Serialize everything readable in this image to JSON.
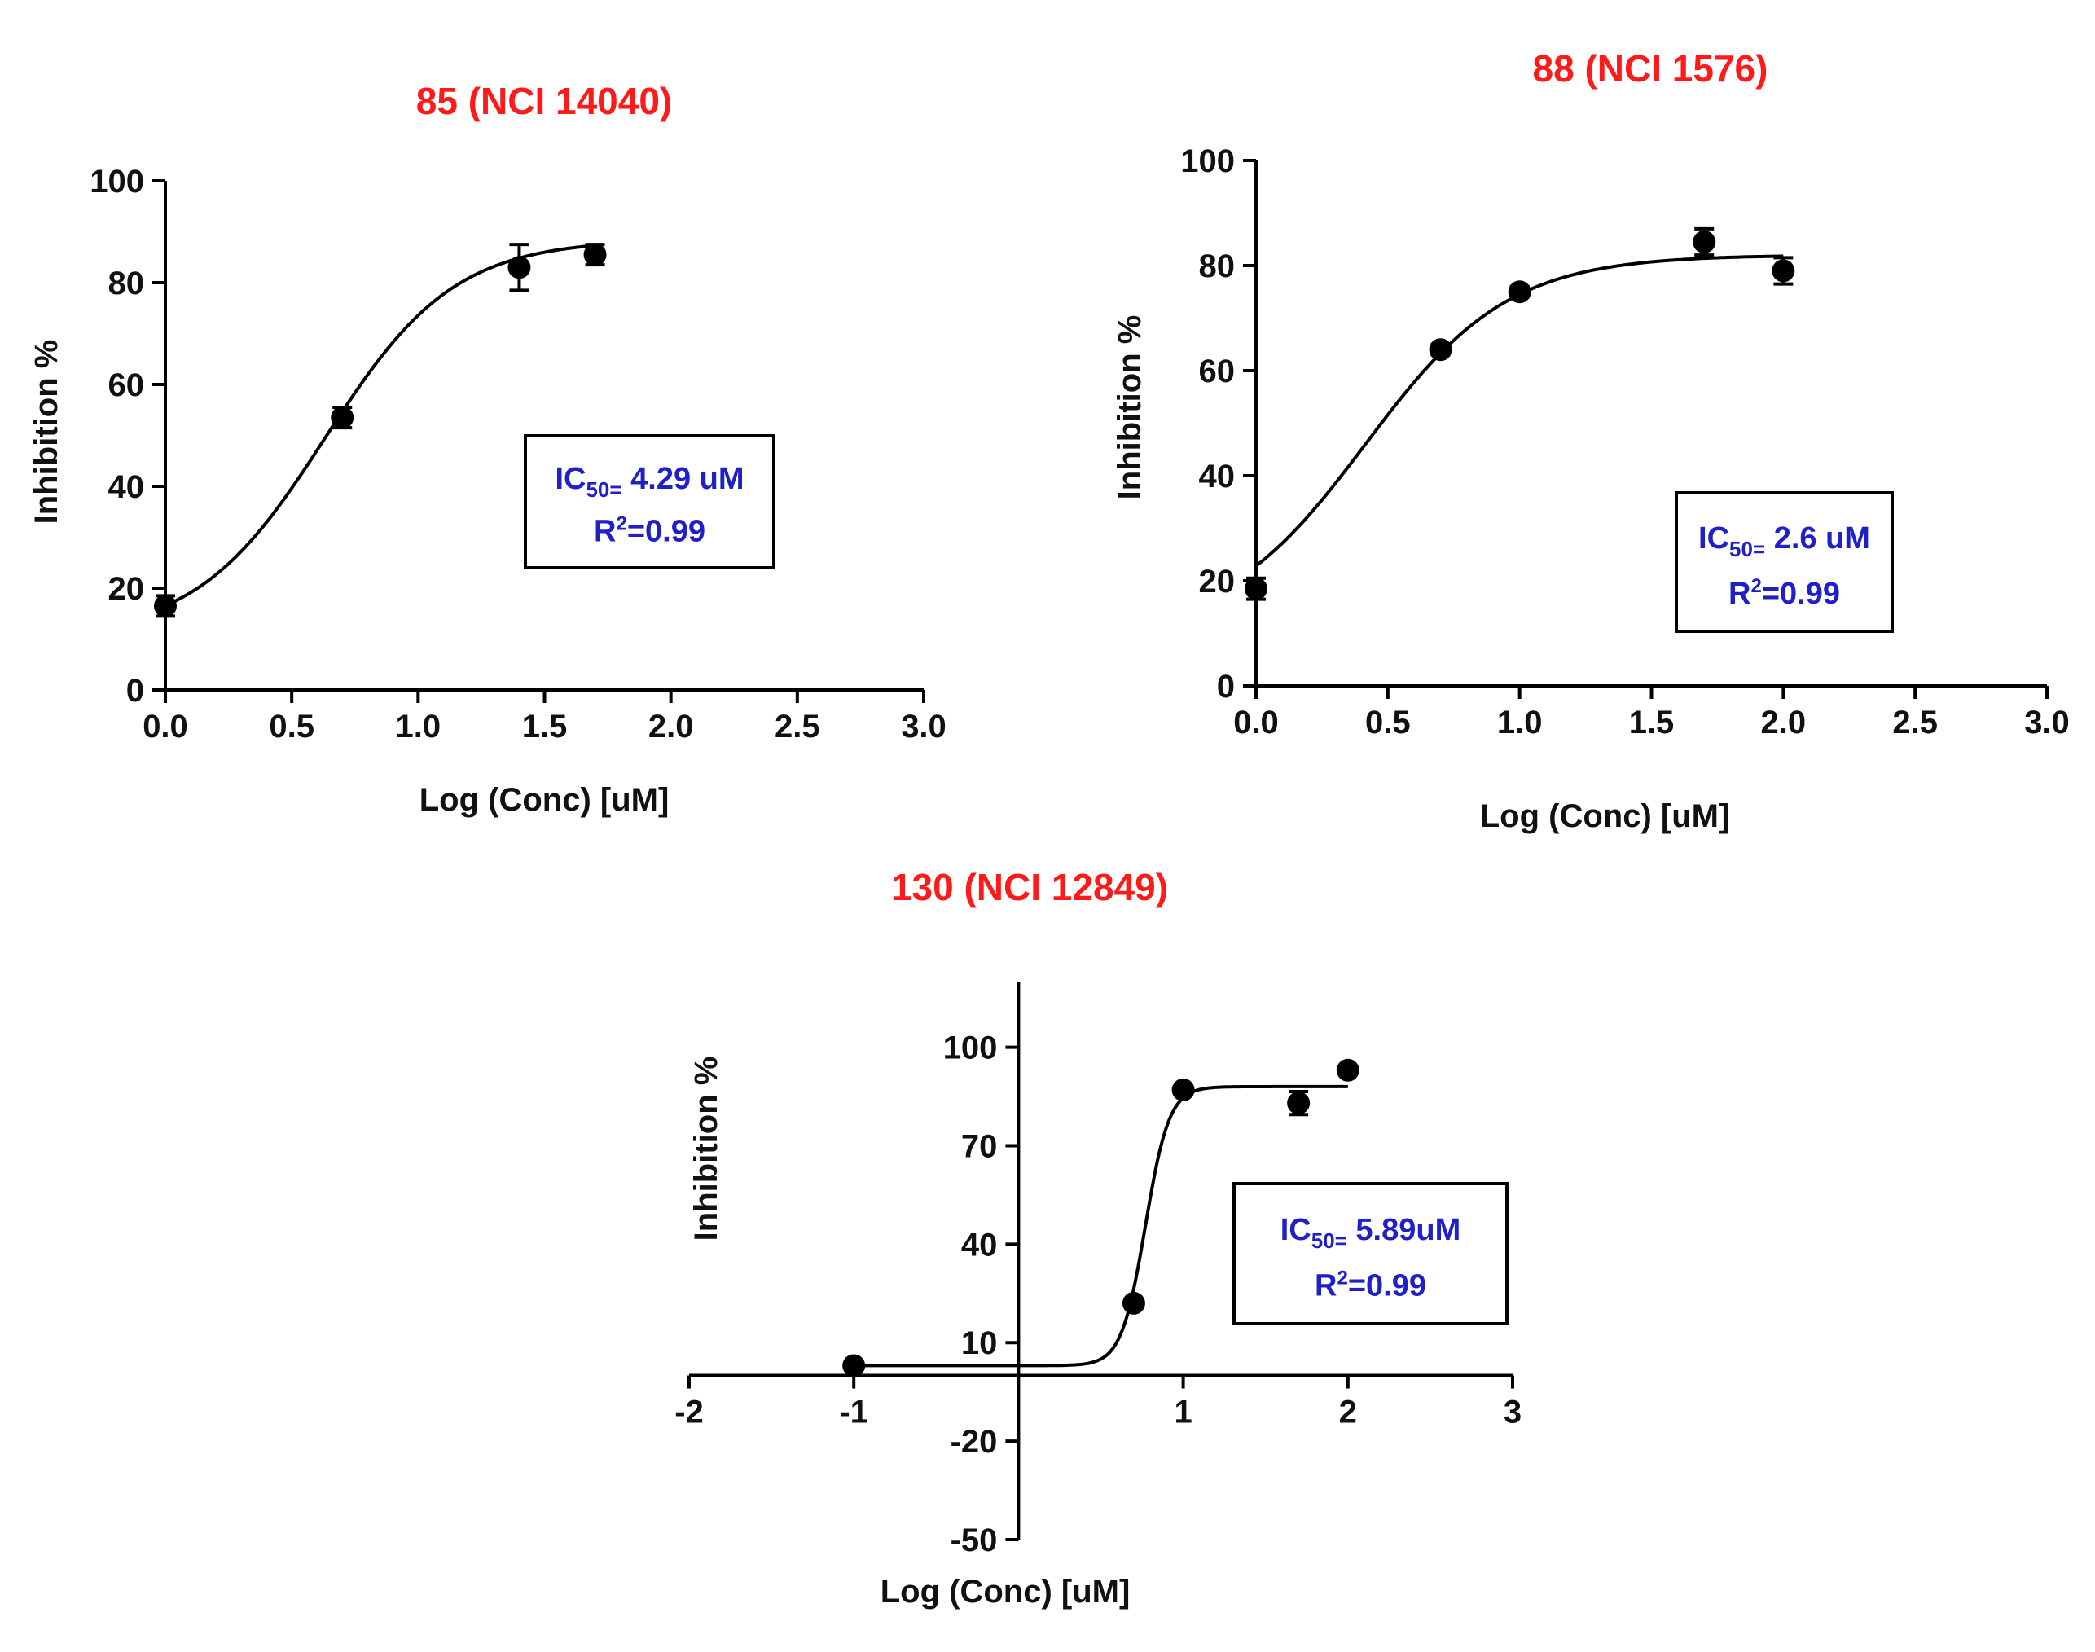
{
  "colors": {
    "title": "#ff1a1a",
    "annotation": "#2020c8",
    "ink": "#000000"
  },
  "chart_data": [
    {
      "type": "scatter",
      "title": "85 (NCI 14040)",
      "xlabel": "Log (Conc) [uM]",
      "ylabel": "Inhibition %",
      "xlim": [
        0,
        3.0
      ],
      "ylim": [
        0,
        100
      ],
      "x_ticks": [
        0.0,
        0.5,
        1.0,
        1.5,
        2.0,
        2.5,
        3.0
      ],
      "x_tick_labels": [
        "0.0",
        "0.5",
        "1.0",
        "1.5",
        "2.0",
        "2.5",
        "3.0"
      ],
      "y_ticks": [
        0,
        20,
        40,
        60,
        80,
        100
      ],
      "y_tick_labels": [
        "0",
        "20",
        "40",
        "60",
        "80",
        "100"
      ],
      "points": [
        {
          "x": 0.0,
          "y": 16.5,
          "err": 2.0
        },
        {
          "x": 0.7,
          "y": 53.5,
          "err": 2.0
        },
        {
          "x": 1.4,
          "y": 83.0,
          "err": 4.5
        },
        {
          "x": 1.7,
          "y": 85.5,
          "err": 2.0
        }
      ],
      "fit": {
        "bottom": 10.5,
        "top": 88.5,
        "logEC50": 0.632,
        "hill": 1.7,
        "x_range": [
          0,
          1.7
        ]
      },
      "annotation": {
        "ic50_prefix": "IC",
        "ic50_sub": "50=",
        "ic50_value": " 4.29 uM",
        "r2_prefix": "R",
        "r2_sup": "2",
        "r2_value": "=0.99"
      }
    },
    {
      "type": "scatter",
      "title": "88 (NCI 1576)",
      "xlabel": "Log (Conc) [uM]",
      "ylabel": "Inhibition %",
      "xlim": [
        0,
        3.0
      ],
      "ylim": [
        0,
        100
      ],
      "x_ticks": [
        0.0,
        0.5,
        1.0,
        1.5,
        2.0,
        2.5,
        3.0
      ],
      "x_tick_labels": [
        "0.0",
        "0.5",
        "1.0",
        "1.5",
        "2.0",
        "2.5",
        "3.0"
      ],
      "y_ticks": [
        0,
        20,
        40,
        60,
        80,
        100
      ],
      "y_tick_labels": [
        "0",
        "20",
        "40",
        "60",
        "80",
        "100"
      ],
      "points": [
        {
          "x": 0.0,
          "y": 18.5,
          "err": 2.0
        },
        {
          "x": 0.7,
          "y": 64.0,
          "err": 1.0
        },
        {
          "x": 1.0,
          "y": 75.0,
          "err": 1.0
        },
        {
          "x": 1.7,
          "y": 84.5,
          "err": 2.5
        },
        {
          "x": 2.0,
          "y": 79.0,
          "err": 2.5
        }
      ],
      "fit": {
        "bottom": 10.0,
        "top": 82.0,
        "logEC50": 0.415,
        "hill": 1.6,
        "x_range": [
          0,
          2.0
        ]
      },
      "annotation": {
        "ic50_prefix": "IC",
        "ic50_sub": "50=",
        "ic50_value": " 2.6 uM",
        "r2_prefix": "R",
        "r2_sup": "2",
        "r2_value": "=0.99"
      }
    },
    {
      "type": "scatter",
      "title": "130 (NCI 12849)",
      "xlabel": "Log (Conc) [uM]",
      "ylabel": "Inhibition %",
      "xlim": [
        -2,
        3
      ],
      "ylim": [
        -50,
        120
      ],
      "x_ticks": [
        -2,
        -1,
        1,
        2,
        3
      ],
      "x_tick_labels": [
        "-2",
        "-1",
        "1",
        "2",
        "3"
      ],
      "y_ticks": [
        -50,
        -20,
        10,
        40,
        70,
        100
      ],
      "y_tick_labels": [
        "-50",
        "-20",
        "10",
        "40",
        "70",
        "100"
      ],
      "points": [
        {
          "x": -1.0,
          "y": 3.0,
          "err": 0
        },
        {
          "x": 0.7,
          "y": 22.0,
          "err": 0
        },
        {
          "x": 1.0,
          "y": 87.0,
          "err": 0
        },
        {
          "x": 1.7,
          "y": 83.0,
          "err": 3.5
        },
        {
          "x": 2.0,
          "y": 93.0,
          "err": 0
        }
      ],
      "fit": {
        "bottom": 3.0,
        "top": 88.0,
        "logEC50": 0.77,
        "hill": 6.0,
        "x_range": [
          -1.0,
          2.0
        ]
      },
      "annotation": {
        "ic50_prefix": "IC",
        "ic50_sub": "50=",
        "ic50_value": " 5.89uM",
        "r2_prefix": "R",
        "r2_sup": "2",
        "r2_value": "=0.99"
      }
    }
  ]
}
